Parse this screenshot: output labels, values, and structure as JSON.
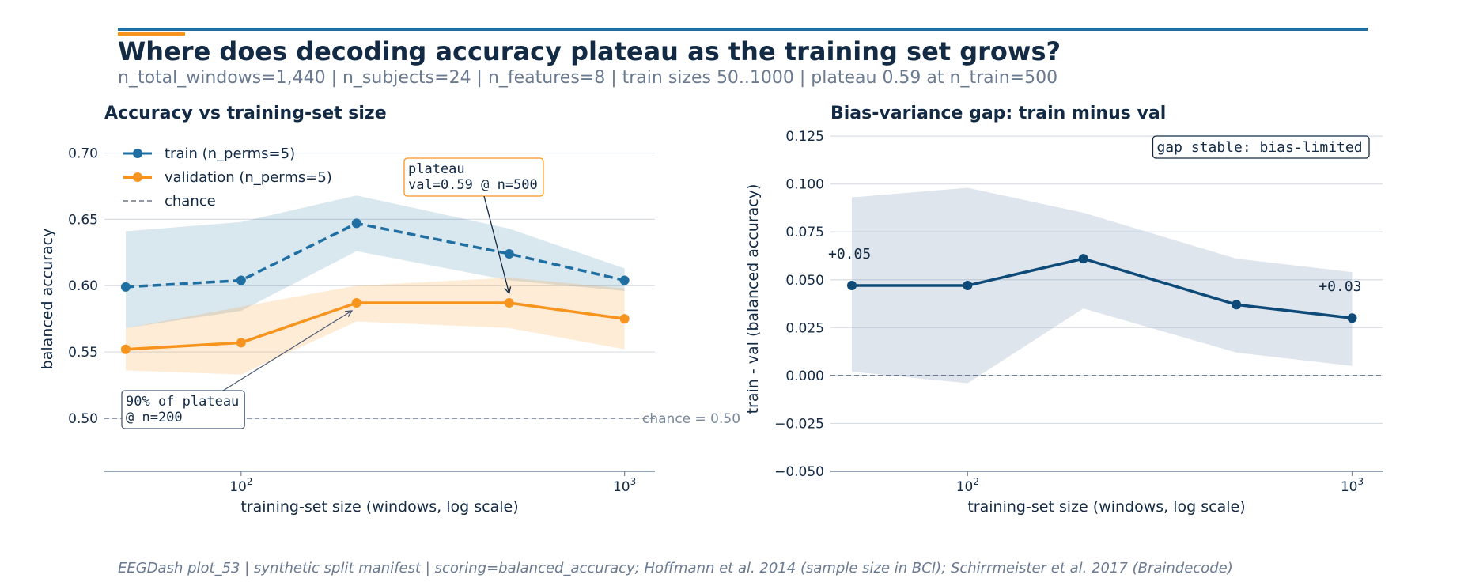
{
  "header": {
    "title": "Where does decoding accuracy plateau as the training set grows?",
    "subtitle": "n_total_windows=1,440 | n_subjects=24 | n_features=8 | train sizes 50..1000 | plateau 0.59 at n_train=500"
  },
  "footer": "EEGDash plot_53 | synthetic split manifest | scoring=balanced_accuracy; Hoffmann et al. 2014 (sample size in BCI); Schirrmeister et al. 2017 (Braindecode)",
  "colors": {
    "train": "#1f6fa3",
    "validation": "#f7941d",
    "gap": "#0d4a78",
    "chance": "#4a5a72",
    "text": "#132a44",
    "grid": "#d9dee4"
  },
  "chart_data": [
    {
      "type": "line",
      "title": "Accuracy vs training-set size",
      "xlabel": "training-set size (windows, log scale)",
      "ylabel": "balanced accuracy",
      "xscale": "log",
      "xlim": [
        44,
        1200
      ],
      "ylim": [
        0.46,
        0.72
      ],
      "grid": "y",
      "legend_position": "top-left",
      "x_ticks": [
        100,
        1000
      ],
      "x_tick_labels": [
        "10",
        "10"
      ],
      "x_tick_exponents": [
        "2",
        "3"
      ],
      "y_ticks": [
        0.5,
        0.55,
        0.6,
        0.65,
        0.7
      ],
      "y_tick_labels": [
        "0.50",
        "0.55",
        "0.60",
        "0.65",
        "0.70"
      ],
      "x": [
        50,
        100,
        200,
        500,
        1000
      ],
      "series": [
        {
          "name": "train (n_perms=5)",
          "values": [
            0.599,
            0.604,
            0.647,
            0.624,
            0.604
          ],
          "band_low": [
            0.568,
            0.581,
            0.626,
            0.604,
            0.596
          ],
          "band_high": [
            0.641,
            0.648,
            0.668,
            0.643,
            0.613
          ],
          "style": "dashed"
        },
        {
          "name": "validation (n_perms=5)",
          "values": [
            0.552,
            0.557,
            0.587,
            0.587,
            0.575
          ],
          "band_low": [
            0.536,
            0.533,
            0.573,
            0.568,
            0.552
          ],
          "band_high": [
            0.568,
            0.584,
            0.6,
            0.606,
            0.598
          ],
          "style": "solid"
        }
      ],
      "reference_line": {
        "name": "chance",
        "value": 0.5,
        "label": "chance = 0.50"
      },
      "annotations": [
        {
          "text_lines": [
            "plateau",
            "val=0.59 @ n=500"
          ],
          "target_x": 500,
          "target_y": 0.587
        },
        {
          "text_lines": [
            "90% of plateau",
            "@ n=200"
          ],
          "target_x": 200,
          "target_y": 0.587
        }
      ]
    },
    {
      "type": "line",
      "title": "Bias-variance gap: train minus val",
      "xlabel": "training-set size (windows, log scale)",
      "ylabel": "train - val (balanced accuracy)",
      "xscale": "log",
      "xlim": [
        44,
        1200
      ],
      "ylim": [
        -0.05,
        0.13
      ],
      "grid": "y",
      "x_ticks": [
        100,
        1000
      ],
      "x_tick_labels": [
        "10",
        "10"
      ],
      "x_tick_exponents": [
        "2",
        "3"
      ],
      "y_ticks": [
        -0.05,
        -0.025,
        0.0,
        0.025,
        0.05,
        0.075,
        0.1,
        0.125
      ],
      "y_tick_labels": [
        "−0.050",
        "−0.025",
        "0.000",
        "0.025",
        "0.050",
        "0.075",
        "0.100",
        "0.125"
      ],
      "x": [
        50,
        100,
        200,
        500,
        1000
      ],
      "series": [
        {
          "name": "",
          "values": [
            0.047,
            0.047,
            0.061,
            0.037,
            0.03
          ],
          "band_low": [
            0.002,
            -0.004,
            0.035,
            0.012,
            0.005
          ],
          "band_high": [
            0.093,
            0.098,
            0.085,
            0.061,
            0.054
          ]
        }
      ],
      "reference_line": {
        "value": 0.0
      },
      "point_labels": [
        {
          "text": "+0.05",
          "x": 50,
          "y": 0.047
        },
        {
          "text": "+0.03",
          "x": 1000,
          "y": 0.03
        }
      ],
      "badge": "gap stable: bias-limited"
    }
  ]
}
